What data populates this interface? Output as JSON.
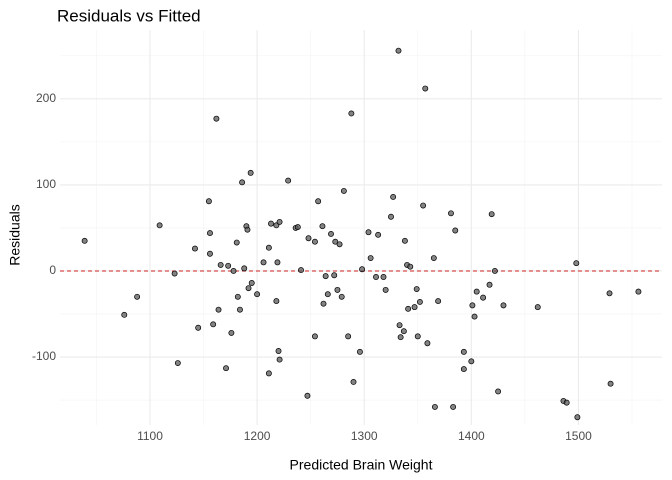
{
  "chart_data": {
    "type": "scatter",
    "title": "Residuals vs Fitted",
    "x_label": "Predicted Brain Weight",
    "y_label": "Residuals",
    "x": [
      1039,
      1076,
      1088,
      1109,
      1123,
      1126,
      1142,
      1145,
      1155,
      1156,
      1156,
      1159,
      1162,
      1164,
      1166,
      1171,
      1173,
      1176,
      1178,
      1181,
      1182,
      1184,
      1186,
      1188,
      1190,
      1191,
      1192,
      1194,
      1195,
      1200,
      1206,
      1211,
      1211,
      1213,
      1218,
      1218,
      1219,
      1220,
      1221,
      1221,
      1229,
      1236,
      1238,
      1241,
      1247,
      1248,
      1254,
      1254,
      1257,
      1261,
      1262,
      1264,
      1266,
      1269,
      1272,
      1273,
      1275,
      1277,
      1279,
      1281,
      1285,
      1288,
      1290,
      1296,
      1298,
      1304,
      1306,
      1311,
      1313,
      1318,
      1320,
      1325,
      1327,
      1332,
      1333,
      1334,
      1337,
      1338,
      1340,
      1341,
      1343,
      1347,
      1349,
      1350,
      1352,
      1355,
      1357,
      1359,
      1365,
      1366,
      1369,
      1381,
      1383,
      1385,
      1393,
      1393,
      1400,
      1401,
      1403,
      1405,
      1411,
      1417,
      1419,
      1422,
      1425,
      1430,
      1462,
      1486,
      1489,
      1498,
      1499,
      1529,
      1530,
      1556
    ],
    "values": [
      35,
      -51,
      -30,
      53,
      -3,
      -107,
      26,
      -66,
      81,
      44,
      20,
      -62,
      177,
      -45,
      7,
      -113,
      6,
      -72,
      0,
      33,
      -30,
      -45,
      103,
      3,
      52,
      48,
      -20,
      114,
      -14,
      -27,
      10,
      27,
      -119,
      55,
      -35,
      53,
      10,
      -93,
      -103,
      57,
      105,
      50,
      51,
      1,
      -145,
      38,
      -76,
      34,
      81,
      52,
      -38,
      -6,
      -27,
      43,
      -5,
      34,
      -22,
      31,
      -30,
      93,
      -76,
      183,
      -129,
      -94,
      2,
      45,
      15,
      -7,
      42,
      -7,
      -22,
      63,
      86,
      256,
      -63,
      -77,
      -70,
      35,
      7,
      -44,
      5,
      -42,
      -21,
      -76,
      -36,
      76,
      212,
      -84,
      15,
      -158,
      -35,
      67,
      -158,
      47,
      -94,
      -114,
      -105,
      -40,
      -53,
      -24,
      -31,
      -16,
      66,
      0,
      -140,
      -40,
      -42,
      -151,
      -153,
      9,
      -170,
      -26,
      -131,
      -24
    ],
    "xlim": [
      1016,
      1578
    ],
    "ylim": [
      -179,
      280
    ],
    "xticks": [
      1100,
      1200,
      1300,
      1400,
      1500
    ],
    "yticks": [
      -100,
      0,
      100,
      200
    ],
    "xminor": [
      1050,
      1150,
      1250,
      1350,
      1450,
      1550
    ],
    "yminor": [
      -150,
      -50,
      50,
      150,
      250
    ],
    "grid": true,
    "color": "#595959",
    "reference_line": {
      "y": 0,
      "color": "#cc2222"
    }
  }
}
